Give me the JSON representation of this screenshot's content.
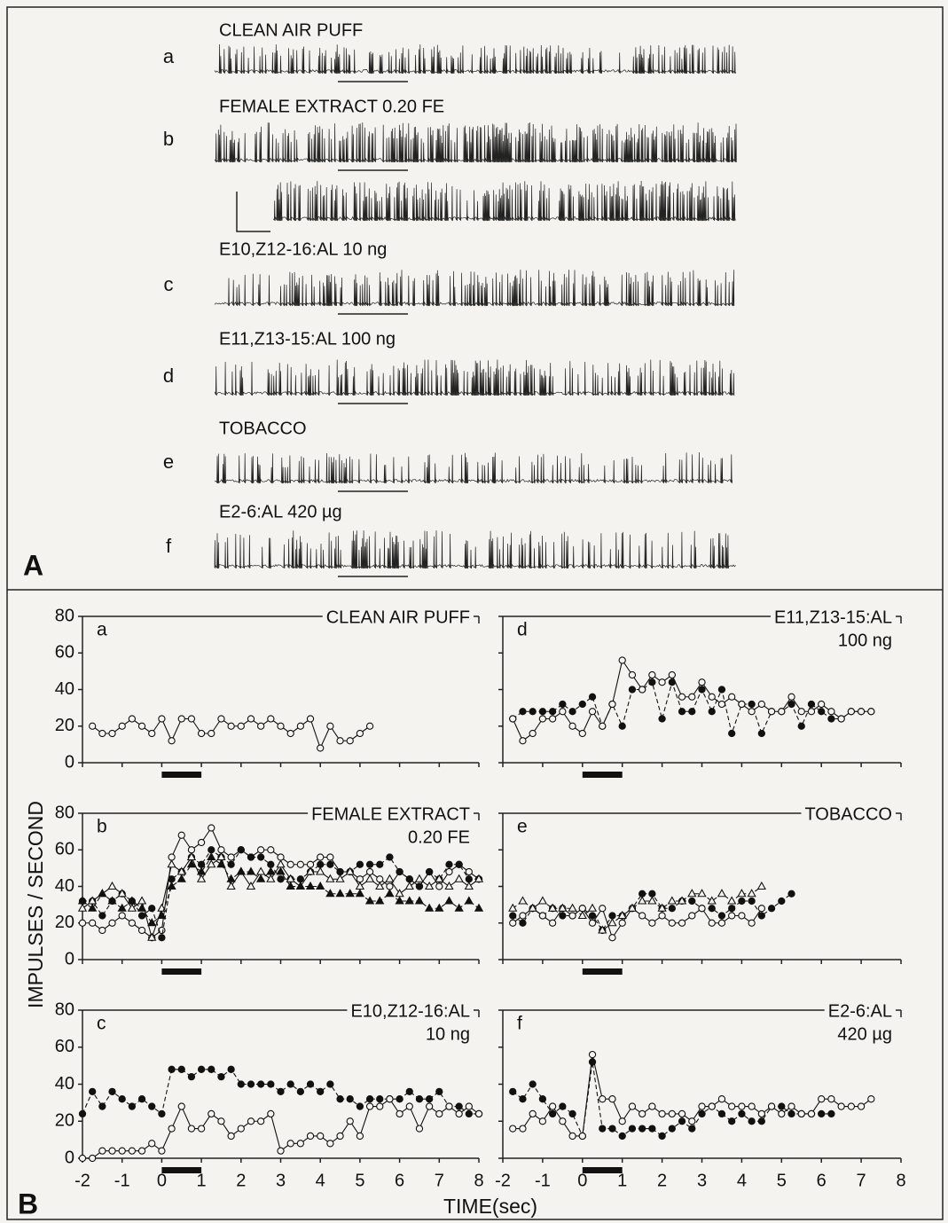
{
  "panel_A": {
    "label": "A",
    "traces": [
      {
        "letter": "a",
        "title": "CLEAN AIR PUFF"
      },
      {
        "letter": "b",
        "title": "FEMALE EXTRACT 0.20 FE"
      },
      {
        "letter": "c",
        "title": "E10,Z12-16:AL 10 ng"
      },
      {
        "letter": "d",
        "title": "E11,Z13-15:AL 100 ng"
      },
      {
        "letter": "e",
        "title": "TOBACCO"
      },
      {
        "letter": "f",
        "title": "E2-6:AL 420 µg"
      }
    ]
  },
  "panel_B": {
    "label": "B",
    "y_label": "IMPULSES / SECOND",
    "x_label": "TIME(sec)",
    "stimulus": [
      0,
      1
    ]
  },
  "chart_data": [
    {
      "type": "line",
      "letter": "a",
      "title": "CLEAN AIR PUFF",
      "x": [
        -1.75,
        -1.5,
        -1.25,
        -1,
        -0.75,
        -0.5,
        -0.25,
        0,
        0.25,
        0.5,
        0.75,
        1,
        1.25,
        1.5,
        1.75,
        2,
        2.25,
        2.5,
        2.75,
        3,
        3.25,
        3.5,
        3.75,
        4,
        4.25,
        4.5,
        4.75,
        5,
        5.25
      ],
      "series": [
        {
          "color": "#111",
          "marker": "open-circle",
          "dash": false,
          "values": [
            20,
            16,
            16,
            20,
            24,
            20,
            16,
            24,
            12,
            24,
            24,
            16,
            16,
            24,
            20,
            20,
            24,
            20,
            24,
            20,
            16,
            20,
            24,
            8,
            20,
            12,
            12,
            16,
            20
          ]
        }
      ],
      "xlim": [
        -2,
        8
      ],
      "ylim": [
        0,
        80
      ],
      "xticks": [
        -2,
        -1,
        0,
        1,
        2,
        3,
        4,
        5,
        6,
        7,
        8
      ],
      "yticks": [
        0,
        20,
        40,
        60,
        80
      ]
    },
    {
      "type": "line",
      "letter": "b",
      "title": "FEMALE EXTRACT",
      "subtitle": "0.20 FE",
      "x": [
        -2,
        -1.75,
        -1.5,
        -1.25,
        -1,
        -0.75,
        -0.5,
        -0.25,
        0,
        0.25,
        0.5,
        0.75,
        1,
        1.25,
        1.5,
        1.75,
        2,
        2.25,
        2.5,
        2.75,
        3,
        3.25,
        3.5,
        3.75,
        4,
        4.25,
        4.5,
        4.75,
        5,
        5.25,
        5.5,
        5.75,
        6,
        6.25,
        6.5,
        6.75,
        7,
        7.25,
        7.5,
        7.75,
        8
      ],
      "series": [
        {
          "color": "#111",
          "marker": "open-circle",
          "dash": false,
          "values": [
            20,
            20,
            16,
            20,
            24,
            20,
            16,
            12,
            16,
            56,
            68,
            60,
            64,
            72,
            60,
            56,
            60,
            56,
            60,
            60,
            56,
            52,
            52,
            52,
            56,
            56,
            48,
            48,
            44,
            48,
            44,
            40,
            48,
            44,
            40,
            48,
            40,
            48,
            52,
            48,
            44
          ]
        },
        {
          "color": "#111",
          "marker": "filled-circle",
          "dash": true,
          "values": [
            32,
            32,
            24,
            32,
            36,
            32,
            24,
            28,
            12,
            44,
            48,
            56,
            52,
            60,
            56,
            52,
            60,
            56,
            56,
            52,
            44,
            44,
            44,
            48,
            52,
            52,
            48,
            48,
            52,
            52,
            52,
            56,
            48,
            44,
            40,
            48,
            44,
            52,
            52,
            44,
            44
          ]
        },
        {
          "color": "#111",
          "marker": "open-triangle",
          "dash": false,
          "values": [
            28,
            32,
            36,
            40,
            36,
            28,
            32,
            12,
            28,
            52,
            48,
            56,
            44,
            52,
            56,
            40,
            48,
            40,
            48,
            44,
            52,
            44,
            40,
            48,
            48,
            44,
            44,
            48,
            40,
            44,
            40,
            44,
            36,
            40,
            44,
            40,
            44,
            40,
            44,
            40,
            44
          ]
        },
        {
          "color": "#111",
          "marker": "filled-triangle",
          "dash": true,
          "values": [
            32,
            28,
            36,
            32,
            28,
            32,
            28,
            20,
            24,
            40,
            44,
            52,
            48,
            56,
            52,
            44,
            48,
            48,
            44,
            48,
            48,
            40,
            40,
            40,
            40,
            36,
            36,
            36,
            36,
            32,
            32,
            36,
            32,
            32,
            32,
            28,
            28,
            32,
            28,
            32,
            28
          ]
        }
      ],
      "xlim": [
        -2,
        8
      ],
      "ylim": [
        0,
        80
      ],
      "xticks": [
        -2,
        -1,
        0,
        1,
        2,
        3,
        4,
        5,
        6,
        7,
        8
      ],
      "yticks": [
        0,
        20,
        40,
        60,
        80
      ]
    },
    {
      "type": "line",
      "letter": "c",
      "title": "E10,Z12-16:AL",
      "subtitle": "10 ng",
      "x": [
        -2,
        -1.75,
        -1.5,
        -1.25,
        -1,
        -0.75,
        -0.5,
        -0.25,
        0,
        0.25,
        0.5,
        0.75,
        1,
        1.25,
        1.5,
        1.75,
        2,
        2.25,
        2.5,
        2.75,
        3,
        3.25,
        3.5,
        3.75,
        4,
        4.25,
        4.5,
        4.75,
        5,
        5.25,
        5.5,
        5.75,
        6,
        6.25,
        6.5,
        6.75,
        7,
        7.25,
        7.5,
        7.75,
        8
      ],
      "series": [
        {
          "color": "#111",
          "marker": "filled-circle",
          "dash": true,
          "values": [
            24,
            36,
            28,
            36,
            32,
            28,
            32,
            28,
            24,
            48,
            48,
            44,
            48,
            48,
            44,
            48,
            40,
            40,
            40,
            40,
            36,
            40,
            36,
            40,
            36,
            40,
            32,
            32,
            28,
            32,
            32,
            32,
            32,
            36,
            32,
            32,
            36,
            28,
            28,
            24,
            24
          ]
        },
        {
          "color": "#111",
          "marker": "open-circle",
          "dash": false,
          "values": [
            0,
            0,
            4,
            4,
            4,
            4,
            4,
            8,
            4,
            16,
            28,
            16,
            16,
            24,
            20,
            12,
            16,
            20,
            20,
            24,
            4,
            8,
            8,
            12,
            12,
            8,
            12,
            20,
            12,
            28,
            28,
            32,
            24,
            28,
            16,
            28,
            24,
            28,
            24,
            28,
            24
          ]
        }
      ],
      "xlim": [
        -2,
        8
      ],
      "ylim": [
        0,
        80
      ],
      "xticks": [
        -2,
        -1,
        0,
        1,
        2,
        3,
        4,
        5,
        6,
        7,
        8
      ],
      "yticks": [
        0,
        20,
        40,
        60,
        80
      ]
    },
    {
      "type": "line",
      "letter": "d",
      "title": "E11,Z13-15:AL",
      "subtitle": "100 ng",
      "x": [
        -1.75,
        -1.5,
        -1.25,
        -1,
        -0.75,
        -0.5,
        -0.25,
        0,
        0.25,
        0.5,
        0.75,
        1,
        1.25,
        1.5,
        1.75,
        2,
        2.25,
        2.5,
        2.75,
        3,
        3.25,
        3.5,
        3.75,
        4,
        4.25,
        4.5,
        4.75,
        5,
        5.25,
        5.5,
        5.75,
        6,
        6.25,
        6.5,
        6.75,
        7,
        7.25
      ],
      "series": [
        {
          "color": "#111",
          "marker": "filled-circle",
          "dash": true,
          "values": [
            24,
            28,
            28,
            28,
            28,
            32,
            28,
            32,
            36,
            20,
            32,
            20,
            40,
            40,
            44,
            24,
            44,
            28,
            28,
            40,
            28,
            40,
            16,
            32,
            32,
            16,
            28,
            28,
            32,
            20,
            32,
            28,
            24,
            24,
            28,
            28,
            28
          ]
        },
        {
          "color": "#111",
          "marker": "open-circle",
          "dash": false,
          "values": [
            24,
            12,
            16,
            24,
            24,
            28,
            20,
            16,
            28,
            20,
            32,
            56,
            48,
            40,
            48,
            44,
            48,
            36,
            36,
            44,
            36,
            32,
            36,
            32,
            28,
            32,
            28,
            28,
            36,
            28,
            28,
            32,
            28,
            24,
            28,
            28,
            28
          ]
        }
      ],
      "xlim": [
        -2,
        8
      ],
      "ylim": [
        0,
        80
      ],
      "xticks": [
        -2,
        -1,
        0,
        1,
        2,
        3,
        4,
        5,
        6,
        7,
        8
      ],
      "yticks": [
        0,
        20,
        40,
        60,
        80
      ]
    },
    {
      "type": "line",
      "letter": "e",
      "title": "TOBACCO",
      "x": [
        -1.75,
        -1.5,
        -1.25,
        -1,
        -0.75,
        -0.5,
        -0.25,
        0,
        0.25,
        0.5,
        0.75,
        1,
        1.25,
        1.5,
        1.75,
        2,
        2.25,
        2.5,
        2.75,
        3,
        3.25,
        3.5,
        3.75,
        4,
        4.25,
        4.5,
        4.75,
        5,
        5.25
      ],
      "series": [
        {
          "color": "#111",
          "marker": "filled-circle",
          "dash": true,
          "values": [
            24,
            20,
            28,
            24,
            28,
            24,
            24,
            28,
            24,
            16,
            24,
            24,
            28,
            36,
            36,
            28,
            28,
            32,
            32,
            28,
            28,
            24,
            28,
            32,
            32,
            24,
            28,
            32,
            36
          ]
        },
        {
          "color": "#111",
          "marker": "open-circle",
          "dash": false,
          "values": [
            20,
            24,
            28,
            24,
            20,
            28,
            24,
            28,
            20,
            28,
            12,
            20,
            28,
            24,
            20,
            24,
            20,
            20,
            24,
            28,
            20,
            20,
            24,
            24,
            20,
            28,
            null,
            null,
            null
          ]
        },
        {
          "color": "#111",
          "marker": "open-triangle",
          "dash": true,
          "values": [
            28,
            32,
            28,
            32,
            28,
            28,
            28,
            24,
            28,
            16,
            20,
            24,
            28,
            32,
            32,
            28,
            32,
            32,
            36,
            36,
            32,
            36,
            32,
            36,
            36,
            40,
            null,
            null,
            null
          ]
        }
      ],
      "xlim": [
        -2,
        8
      ],
      "ylim": [
        0,
        80
      ],
      "xticks": [
        -2,
        -1,
        0,
        1,
        2,
        3,
        4,
        5,
        6,
        7,
        8
      ],
      "yticks": [
        0,
        20,
        40,
        60,
        80
      ]
    },
    {
      "type": "line",
      "letter": "f",
      "title": "E2-6:AL",
      "subtitle": "420 µg",
      "x": [
        -1.75,
        -1.5,
        -1.25,
        -1,
        -0.75,
        -0.5,
        -0.25,
        0,
        0.25,
        0.5,
        0.75,
        1,
        1.25,
        1.5,
        1.75,
        2,
        2.25,
        2.5,
        2.75,
        3,
        3.25,
        3.5,
        3.75,
        4,
        4.25,
        4.5,
        4.75,
        5,
        5.25,
        5.5,
        5.75,
        6,
        6.25,
        6.5,
        6.75,
        7,
        7.25
      ],
      "series": [
        {
          "color": "#111",
          "marker": "filled-circle",
          "dash": true,
          "values": [
            36,
            32,
            40,
            32,
            24,
            28,
            24,
            12,
            52,
            16,
            16,
            12,
            16,
            16,
            16,
            12,
            16,
            20,
            16,
            24,
            28,
            24,
            20,
            24,
            20,
            20,
            28,
            28,
            24,
            24,
            24,
            24,
            24,
            null,
            null,
            null,
            null
          ]
        },
        {
          "color": "#111",
          "marker": "open-circle",
          "dash": false,
          "values": [
            16,
            16,
            24,
            20,
            28,
            20,
            12,
            12,
            56,
            32,
            32,
            20,
            28,
            24,
            28,
            24,
            24,
            24,
            20,
            28,
            28,
            32,
            28,
            28,
            28,
            24,
            28,
            24,
            28,
            24,
            24,
            32,
            32,
            28,
            28,
            28,
            32
          ]
        }
      ],
      "xlim": [
        -2,
        8
      ],
      "ylim": [
        0,
        80
      ],
      "xticks": [
        -2,
        -1,
        0,
        1,
        2,
        3,
        4,
        5,
        6,
        7,
        8
      ],
      "yticks": [
        0,
        20,
        40,
        60,
        80
      ]
    }
  ]
}
